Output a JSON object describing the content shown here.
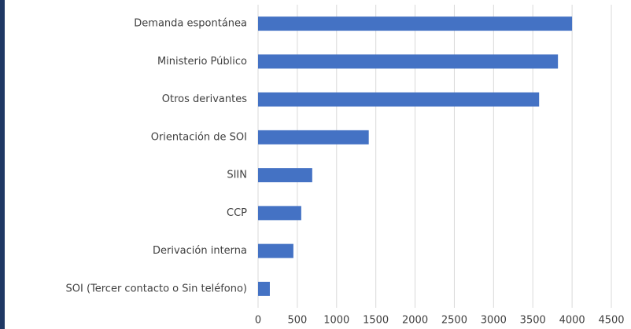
{
  "chart_data": {
    "type": "bar",
    "orientation": "horizontal",
    "categories": [
      "Demanda espontánea",
      "Ministerio Público",
      "Otros derivantes",
      "Orientación de SOI",
      "SIIN",
      "CCP",
      "Derivación interna",
      "SOI (Tercer contacto o Sin teléfono)"
    ],
    "values": [
      4000,
      3820,
      3580,
      1410,
      690,
      550,
      450,
      150
    ],
    "color": "#4472c4",
    "xlim": [
      0,
      4500
    ],
    "xticks": [
      0,
      500,
      1000,
      1500,
      2000,
      2500,
      3000,
      3500,
      4000,
      4500
    ],
    "grid": true
  }
}
